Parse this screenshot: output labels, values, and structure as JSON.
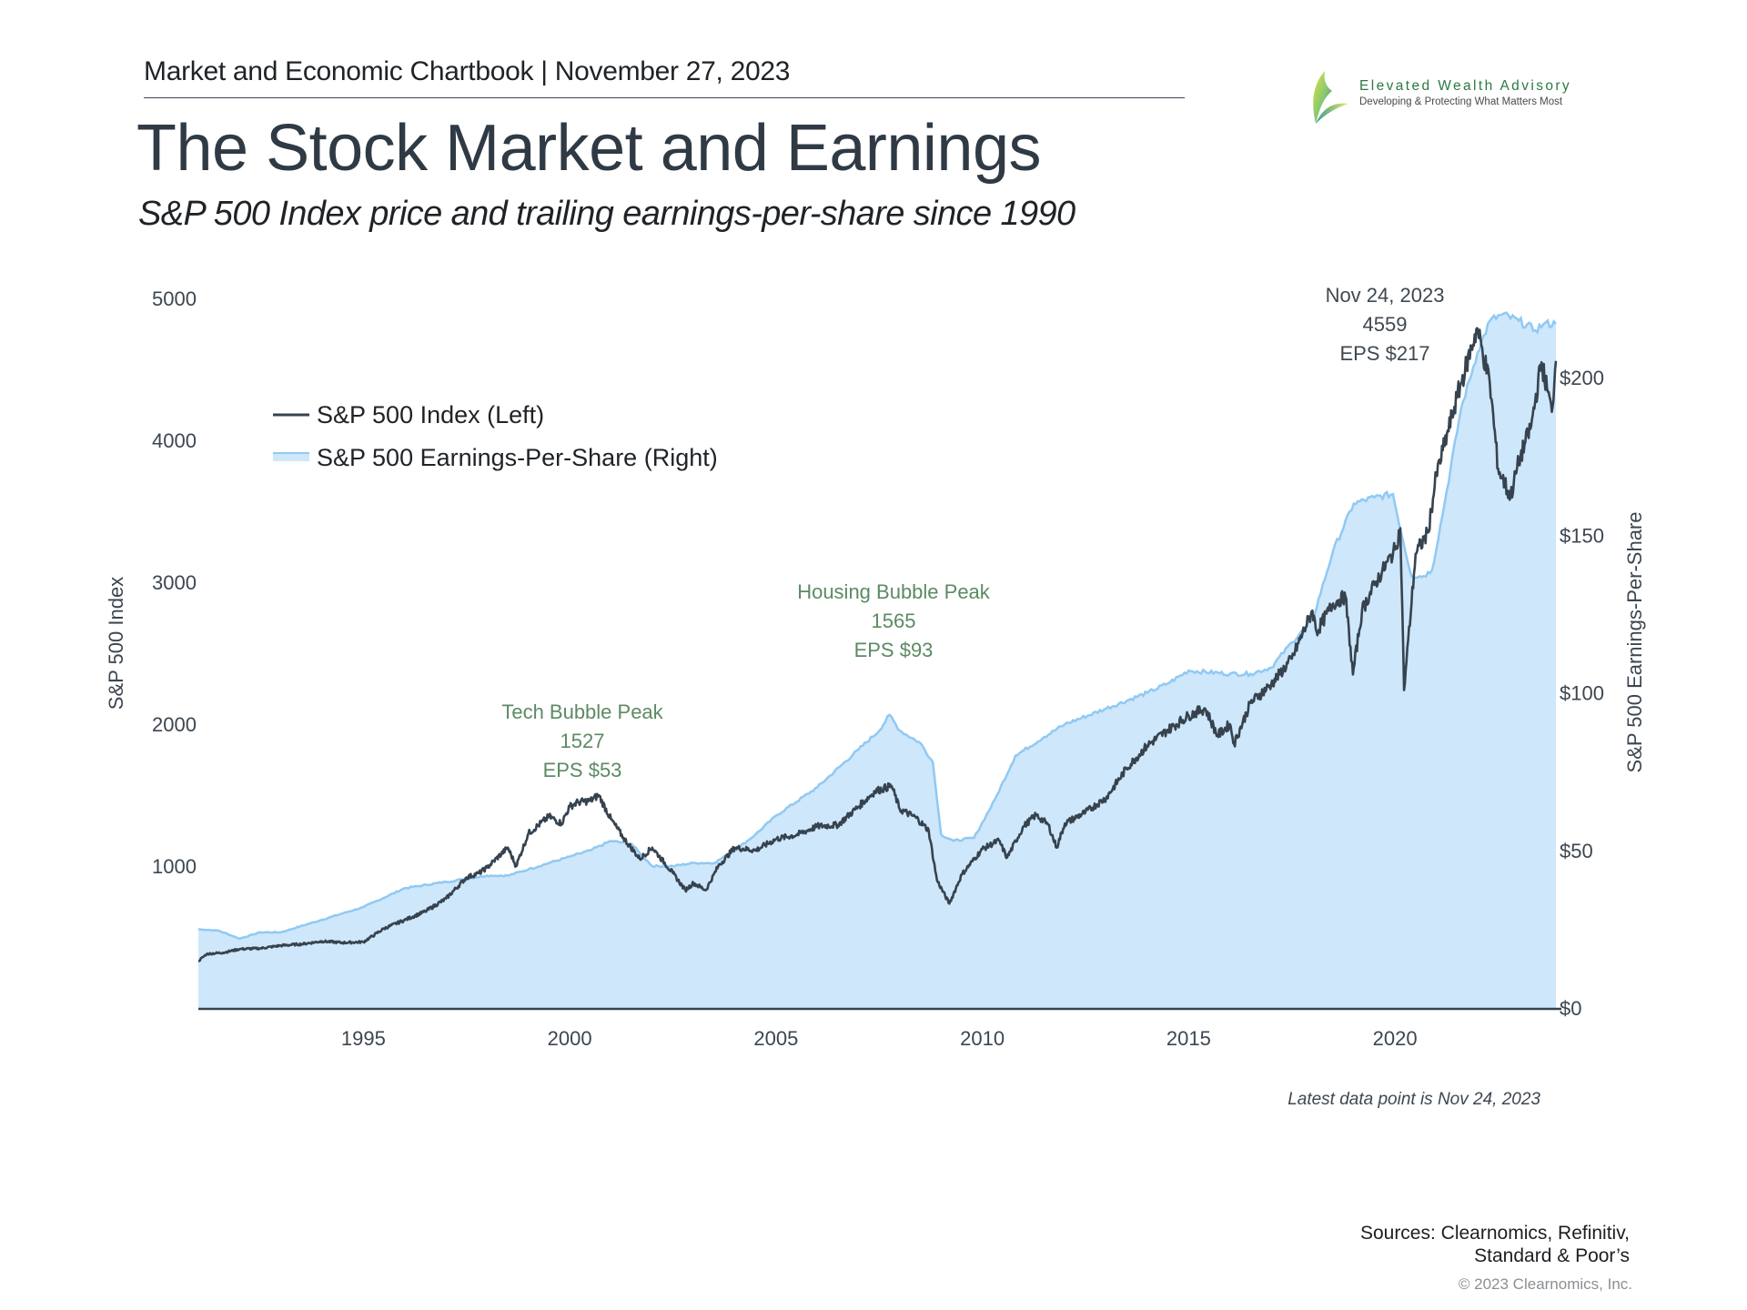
{
  "header": {
    "chartbook": "Market and Economic Chartbook | November 27, 2023",
    "title": "The Stock Market and Earnings",
    "subtitle": "S&P 500 Index price and trailing earnings-per-share since 1990"
  },
  "logo": {
    "name": "Elevated Wealth Advisory",
    "tagline": "Developing & Protecting What Matters Most",
    "icon": "leaf-logo-icon"
  },
  "colors": {
    "index_line": "#36434f",
    "eps_fill": "#cfe7fa",
    "eps_line": "#90c9f3",
    "annotation_green": "#5c8a63",
    "annotation_dark": "#3f4850",
    "axis": "#36434f"
  },
  "footer": {
    "latest": "Latest data point is Nov 24, 2023",
    "sources_line1": "Sources: Clearnomics, Refinitiv,",
    "sources_line2": "Standard & Poor’s",
    "copyright": "© 2023 Clearnomics, Inc."
  },
  "chart_data": {
    "type": "line",
    "title": "The Stock Market and Earnings",
    "subtitle": "S&P 500 Index price and trailing earnings-per-share since 1990",
    "xlabel": "",
    "ylabel_left": "S&P 500 Index",
    "ylabel_right": "S&P 500 Earnings-Per-Share",
    "xlim": [
      1991.0,
      2023.9
    ],
    "ylim_left": [
      0,
      5000
    ],
    "ylim_right": [
      0,
      200
    ],
    "x_ticks": [
      1995,
      2000,
      2005,
      2010,
      2015,
      2020
    ],
    "x_tick_labels": [
      "1995",
      "2000",
      "2005",
      "2010",
      "2015",
      "2020"
    ],
    "y_left_ticks": [
      1000,
      2000,
      3000,
      4000,
      5000
    ],
    "y_left_tick_labels": [
      "1000",
      "2000",
      "3000",
      "4000",
      "5000"
    ],
    "y_right_ticks": [
      0,
      50,
      100,
      150,
      200
    ],
    "y_right_tick_labels": [
      "$0",
      "$50",
      "$100",
      "$150",
      "$200"
    ],
    "grid": false,
    "legend_position": "top-left",
    "legend": [
      {
        "label": "S&P 500 Index (Left)",
        "kind": "line"
      },
      {
        "label": "S&P 500 Earnings-Per-Share (Right)",
        "kind": "area"
      }
    ],
    "series": [
      {
        "name": "S&P 500 Index (Left)",
        "axis": "left",
        "type": "line",
        "x": [
          1991.0,
          1991.2,
          1991.6,
          1992.0,
          1992.5,
          1993.0,
          1993.5,
          1994.0,
          1994.5,
          1995.0,
          1995.5,
          1996.0,
          1996.5,
          1997.0,
          1997.5,
          1997.8,
          1998.0,
          1998.5,
          1998.7,
          1999.0,
          1999.5,
          1999.8,
          2000.0,
          2000.2,
          2000.5,
          2000.7,
          2001.0,
          2001.3,
          2001.7,
          2002.0,
          2002.5,
          2002.8,
          2003.0,
          2003.3,
          2003.6,
          2004.0,
          2004.5,
          2005.0,
          2005.5,
          2006.0,
          2006.5,
          2007.0,
          2007.4,
          2007.8,
          2008.0,
          2008.4,
          2008.7,
          2008.9,
          2009.2,
          2009.5,
          2010.0,
          2010.4,
          2010.6,
          2011.0,
          2011.3,
          2011.6,
          2011.8,
          2012.0,
          2012.5,
          2013.0,
          2013.5,
          2014.0,
          2014.5,
          2015.0,
          2015.4,
          2015.7,
          2016.0,
          2016.1,
          2016.5,
          2017.0,
          2017.5,
          2018.0,
          2018.1,
          2018.5,
          2018.8,
          2018.98,
          2019.2,
          2019.5,
          2020.0,
          2020.13,
          2020.22,
          2020.5,
          2020.8,
          2021.0,
          2021.5,
          2021.99,
          2022.3,
          2022.5,
          2022.8,
          2023.0,
          2023.3,
          2023.55,
          2023.8,
          2023.9
        ],
        "values": [
          330,
          380,
          390,
          415,
          420,
          440,
          450,
          470,
          460,
          465,
          560,
          620,
          680,
          770,
          920,
          950,
          990,
          1130,
          1000,
          1230,
          1350,
          1300,
          1420,
          1450,
          1460,
          1500,
          1330,
          1200,
          1050,
          1130,
          950,
          830,
          880,
          830,
          1000,
          1130,
          1110,
          1190,
          1220,
          1280,
          1290,
          1420,
          1527,
          1565,
          1400,
          1340,
          1250,
          900,
          735,
          940,
          1120,
          1180,
          1060,
          1280,
          1360,
          1290,
          1130,
          1300,
          1380,
          1480,
          1690,
          1850,
          1960,
          2060,
          2110,
          1920,
          2000,
          1860,
          2150,
          2280,
          2460,
          2800,
          2650,
          2850,
          2900,
          2350,
          2800,
          2980,
          3230,
          3380,
          2240,
          3200,
          3350,
          3750,
          4300,
          4790,
          4400,
          3800,
          3600,
          3850,
          4100,
          4550,
          4200,
          4559
        ]
      },
      {
        "name": "S&P 500 Earnings-Per-Share (Right)",
        "axis": "right",
        "type": "area",
        "x": [
          1991.0,
          1991.5,
          1992.0,
          1992.5,
          1993.0,
          1994.0,
          1995.0,
          1996.0,
          1997.0,
          1998.0,
          1998.5,
          1999.0,
          1999.5,
          2000.0,
          2000.5,
          2001.0,
          2001.5,
          2002.0,
          2002.5,
          2003.0,
          2003.5,
          2004.0,
          2004.5,
          2005.0,
          2006.0,
          2007.0,
          2007.5,
          2007.75,
          2008.0,
          2008.5,
          2008.8,
          2009.0,
          2009.3,
          2009.8,
          2010.3,
          2010.8,
          2011.5,
          2012.0,
          2013.0,
          2014.0,
          2014.5,
          2015.0,
          2016.0,
          2016.5,
          2017.0,
          2017.5,
          2018.0,
          2018.5,
          2019.0,
          2019.5,
          2019.95,
          2020.2,
          2020.4,
          2020.7,
          2020.9,
          2021.2,
          2021.6,
          2022.0,
          2022.3,
          2022.6,
          2023.0,
          2023.4,
          2023.6,
          2023.9
        ],
        "values": [
          25,
          24.5,
          22,
          24,
          24,
          28,
          32,
          38,
          40,
          42,
          42,
          44,
          46,
          48,
          50,
          53,
          52,
          45,
          45,
          46,
          46,
          50,
          55,
          61,
          70,
          82,
          88,
          93,
          88,
          84,
          78,
          55,
          53,
          54,
          66,
          80,
          86,
          90,
          95,
          100,
          103,
          107,
          106,
          106,
          108,
          116,
          123,
          145,
          160,
          162,
          163,
          148,
          137,
          137,
          139,
          160,
          190,
          208,
          218,
          220,
          218,
          215,
          217,
          217
        ]
      }
    ],
    "annotations": [
      {
        "label": "Tech Bubble Peak",
        "value": "1527",
        "eps": "EPS $53",
        "x": 2000.2,
        "color": "green"
      },
      {
        "label": "Housing Bubble Peak",
        "value": "1565",
        "eps": "EPS $93",
        "x": 2007.75,
        "color": "green"
      },
      {
        "label": "Nov 24, 2023",
        "value": "4559",
        "eps": "EPS $217",
        "x": 2023.9,
        "color": "dark"
      }
    ]
  }
}
